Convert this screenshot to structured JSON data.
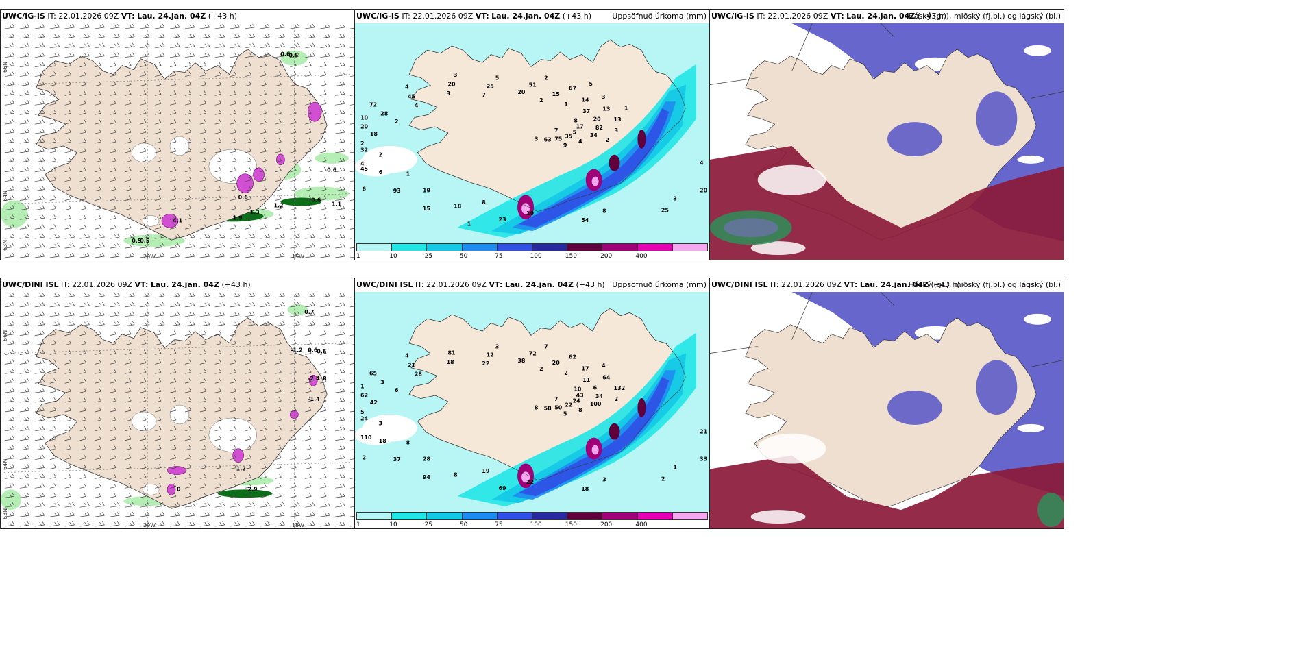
{
  "rows": [
    {
      "id": "top",
      "model": "UWC/IG-IS",
      "it_label": "IT:",
      "it_value": "22.01.2026 09Z",
      "vt_label": "VT:",
      "vt_value": "Lau. 24.jan. 04Z",
      "lead": "(+43 h)"
    },
    {
      "id": "bottom",
      "model": "UWC/DINI ISL",
      "it_label": "IT:",
      "it_value": "22.01.2026 09Z",
      "vt_label": "VT:",
      "vt_value": "Lau. 24.jan. 04Z",
      "lead": "(+43 h)"
    }
  ],
  "panels": {
    "wind": {
      "lat_labels": [
        "66N",
        "64N",
        "63N"
      ],
      "lon_labels": [
        "20W",
        "15W"
      ],
      "top_values": [
        "0.6",
        "0.5",
        "0.6",
        "1.2",
        "0.6",
        "1.1",
        "1.9",
        "1.3",
        "4.1",
        "0.5",
        "0.5",
        "0.6"
      ],
      "bottom_values": [
        "0.7",
        "-1.2",
        "0.6",
        "0.6",
        "-2.4",
        "8",
        "-1.4",
        "1.2",
        "2.9",
        "0"
      ]
    },
    "precip": {
      "title": "Uppsöfnuð úrkoma (mm)",
      "legend": {
        "ticks": [
          "1",
          "10",
          "25",
          "50",
          "75",
          "100",
          "150",
          "200",
          "400"
        ],
        "colors": [
          "#b8f5f5",
          "#22e6e6",
          "#14c8e6",
          "#1e8cf0",
          "#3050e6",
          "#2a2aa0",
          "#60003c",
          "#a00078",
          "#e600b4",
          "#f5a8f0"
        ]
      },
      "top_values": [
        "7",
        "1",
        "2",
        "3",
        "2",
        "8",
        "8",
        "7",
        "4",
        "2",
        "1",
        "8",
        "4",
        "17",
        "19",
        "20",
        "20",
        "18",
        "37",
        "10",
        "3",
        "5",
        "6",
        "15",
        "25",
        "28",
        "20",
        "18",
        "25",
        "35",
        "32",
        "14",
        "54",
        "45",
        "82",
        "93",
        "51",
        "75",
        "20",
        "13",
        "23",
        "20",
        "34",
        "45",
        "67",
        "63",
        "72",
        "13",
        "15",
        "5",
        "4",
        "2",
        "3",
        "3",
        "4",
        "3",
        "6",
        "2",
        "9",
        "10",
        "1",
        "1",
        "3",
        "2",
        "4",
        "5"
      ],
      "bottom_values": [
        "7",
        "8",
        "2",
        "1",
        "6",
        "10",
        "19",
        "22",
        "21",
        "3",
        "2",
        "3",
        "28",
        "43",
        "28",
        "38",
        "33",
        "42",
        "11",
        "22",
        "18",
        "24",
        "18",
        "20",
        "2",
        "3",
        "6",
        "8",
        "12",
        "22",
        "24",
        "17",
        "18",
        "21",
        "34",
        "37",
        "72",
        "50",
        "62",
        "64",
        "69",
        "81",
        "100",
        "110",
        "62",
        "58",
        "65",
        "132",
        "94",
        "3",
        "8",
        "5",
        "4",
        "8",
        "4",
        "2",
        "2",
        "7",
        "5",
        "1"
      ]
    },
    "cloud": {
      "title": "Háský (gr.), miðský (fj.bl.) og lágský (bl.)"
    }
  }
}
